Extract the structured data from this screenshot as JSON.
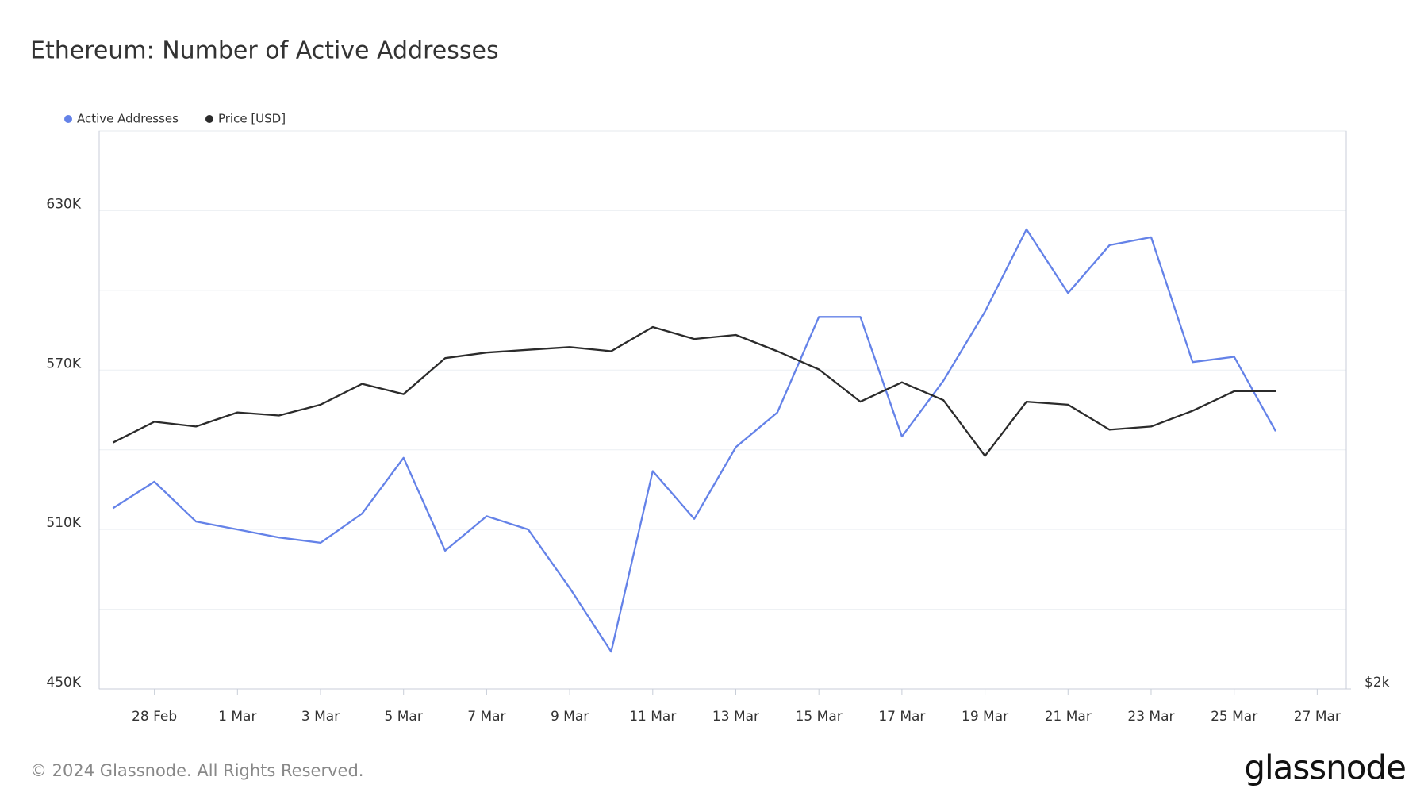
{
  "chart_data": {
    "type": "line",
    "title": "Ethereum: Number of Active Addresses",
    "categories": [
      null,
      "28 Feb",
      null,
      "1 Mar",
      null,
      "3 Mar",
      null,
      "5 Mar",
      null,
      "7 Mar",
      null,
      "9 Mar",
      null,
      "11 Mar",
      null,
      "13 Mar",
      null,
      "15 Mar",
      null,
      "17 Mar",
      null,
      "19 Mar",
      null,
      "21 Mar",
      null,
      "23 Mar",
      null,
      "25 Mar",
      null,
      "27 Mar"
    ],
    "series": [
      {
        "name": "Active Addresses",
        "color": "#6482e8",
        "axis": "y",
        "values": [
          518000,
          528000,
          513000,
          510000,
          507000,
          505000,
          516000,
          537000,
          502000,
          515000,
          510000,
          488000,
          464000,
          532000,
          514000,
          541000,
          554000,
          590000,
          590000,
          545000,
          566000,
          592000,
          623000,
          599000,
          617000,
          620000,
          573000,
          575000,
          547000,
          null
        ]
      },
      {
        "name": "Price [USD]",
        "color": "#2b2b2b",
        "axis": "y2",
        "values": [
          3200,
          3330,
          3300,
          3390,
          3370,
          3440,
          3580,
          3510,
          3760,
          3800,
          3820,
          3840,
          3810,
          3990,
          3900,
          3930,
          3810,
          3680,
          3460,
          3590,
          3470,
          3120,
          3460,
          3440,
          3280,
          3300,
          3400,
          3530,
          3530,
          null
        ]
      }
    ],
    "ylim": [
      450000,
      660000
    ],
    "yticks": [
      {
        "value": 450000,
        "label": "450K"
      },
      {
        "value": 510000,
        "label": "510K"
      },
      {
        "value": 570000,
        "label": "570K"
      },
      {
        "value": 630000,
        "label": "630K"
      }
    ],
    "ygrid_minor": [
      480000,
      540000,
      600000
    ],
    "y2lim": [
      2000,
      5800
    ],
    "y2log": true,
    "y2ticks": [
      {
        "value": 2000,
        "label": "$2k"
      }
    ],
    "grid": true,
    "legend": "top-left",
    "footer": "© 2024 Glassnode. All Rights Reserved.",
    "brand": "glassnode"
  }
}
